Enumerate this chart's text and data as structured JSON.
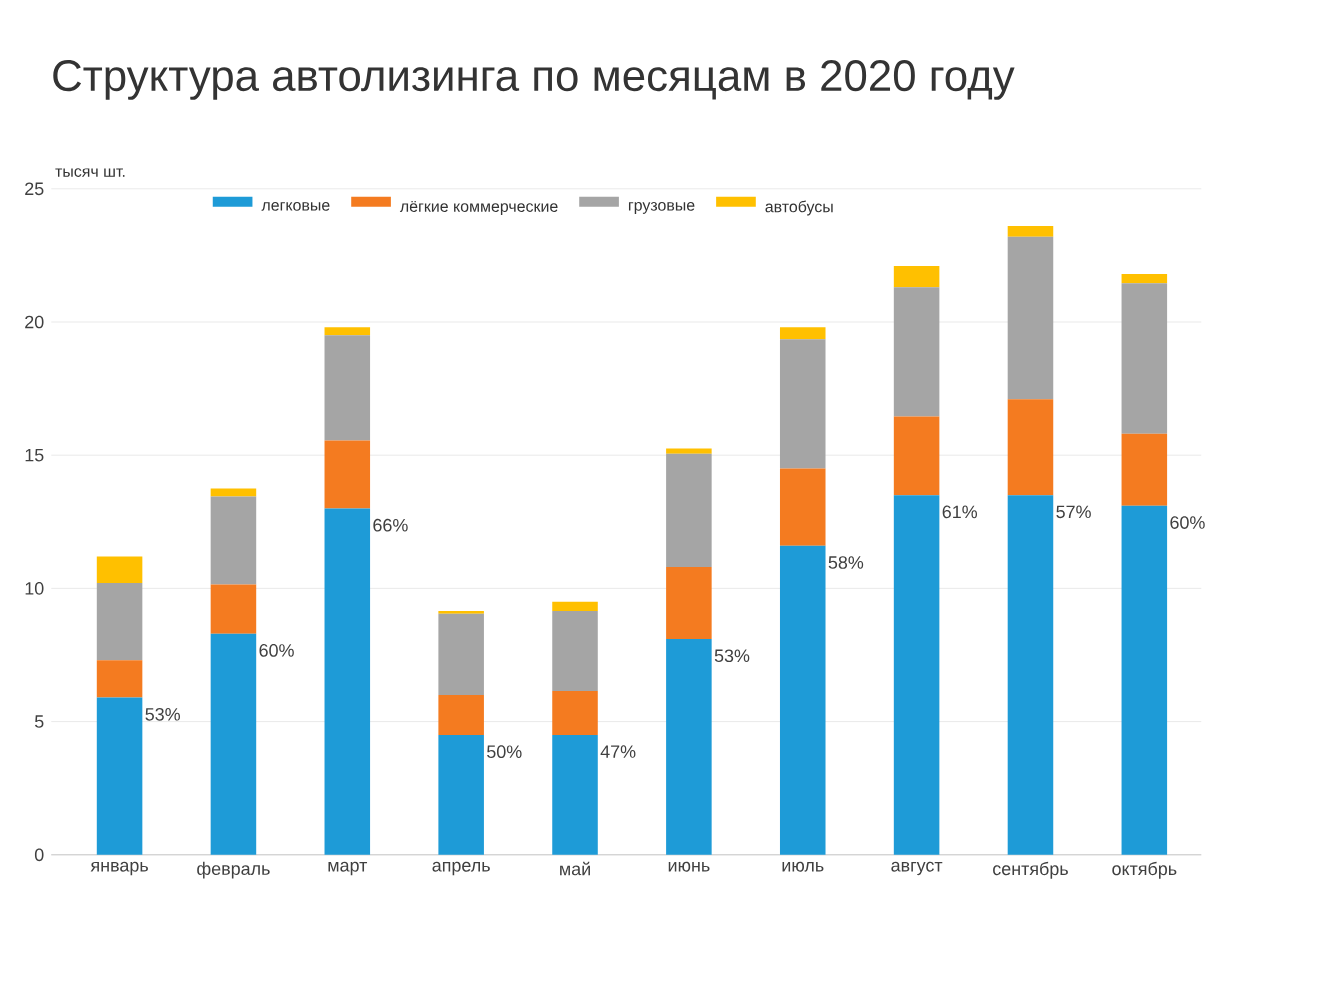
{
  "chart_data": {
    "type": "bar",
    "title": "Структура автолизинга по месяцам в 2020 году",
    "ylabel": "тысяч шт.",
    "categories": [
      "январь",
      "февраль",
      "март",
      "апрель",
      "май",
      "июнь",
      "июль",
      "август",
      "сентябрь",
      "октябрь"
    ],
    "annotations": [
      {
        "text": "53%",
        "x": "январь",
        "y": 5.9
      },
      {
        "text": "60%",
        "x": "февраль",
        "y": 8.3
      },
      {
        "text": "66%",
        "x": "март",
        "y": 13.0
      },
      {
        "text": "50%",
        "x": "апрель",
        "y": 4.5
      },
      {
        "text": "47%",
        "x": "май",
        "y": 4.5
      },
      {
        "text": "53%",
        "x": "июнь",
        "y": 8.1
      },
      {
        "text": "58%",
        "x": "июль",
        "y": 11.6
      },
      {
        "text": "61%",
        "x": "август",
        "y": 13.5
      },
      {
        "text": "57%",
        "x": "сентябрь",
        "y": 13.5
      },
      {
        "text": "60%",
        "x": "октябрь",
        "y": 13.1
      }
    ],
    "stacked": true,
    "ylim": [
      0,
      25
    ],
    "yticks": [
      0,
      5,
      10,
      15,
      20,
      25
    ],
    "grid": "y",
    "legend": "top",
    "series": [
      {
        "name": "легковые",
        "color": "#1e9bd7",
        "values": [
          5.9,
          8.3,
          13.0,
          4.5,
          4.5,
          8.1,
          11.6,
          13.5,
          13.5,
          13.1
        ]
      },
      {
        "name": "лёгкие коммерческие",
        "color": "#f47b20",
        "values": [
          1.4,
          1.85,
          2.55,
          1.5,
          1.65,
          2.7,
          2.9,
          2.95,
          3.6,
          2.7
        ]
      },
      {
        "name": "грузовые",
        "color": "#a5a5a5",
        "values": [
          2.9,
          3.3,
          3.95,
          3.05,
          3.0,
          4.25,
          4.85,
          4.85,
          6.1,
          5.65
        ]
      },
      {
        "name": "автобусы",
        "color": "#ffc000",
        "values": [
          1.0,
          0.3,
          0.3,
          0.1,
          0.35,
          0.2,
          0.45,
          0.8,
          0.4,
          0.35
        ]
      }
    ]
  }
}
